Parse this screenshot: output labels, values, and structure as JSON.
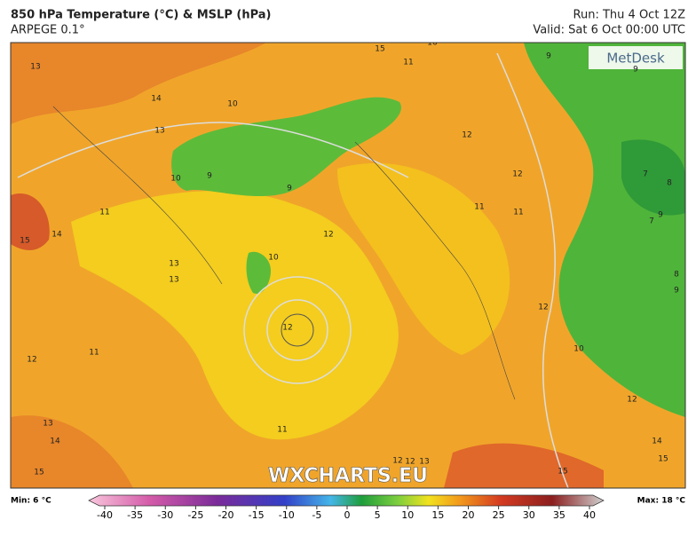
{
  "header": {
    "title": "850 hPa Temperature (°C) & MSLP (hPa)",
    "model": "ARPEGE 0.1°",
    "run": "Run: Thu 4 Oct 12Z",
    "valid": "Valid: Sat 6 Oct 00:00 UTC"
  },
  "logo": "MetDesk",
  "watermark": "WXCHARTS.EU",
  "map": {
    "contour_labels": [
      "13",
      "14",
      "13",
      "10",
      "10",
      "9",
      "9",
      "15",
      "16",
      "11",
      "12",
      "12",
      "11",
      "12",
      "13",
      "13",
      "10",
      "12",
      "11",
      "12",
      "11",
      "11",
      "12",
      "11",
      "9",
      "9",
      "7",
      "8",
      "9",
      "7",
      "8",
      "9",
      "12",
      "10",
      "14",
      "15",
      "13",
      "14",
      "15",
      "12",
      "13",
      "15",
      "14",
      "15",
      "12"
    ]
  },
  "colorbar": {
    "min_label": "Min: 6 °C",
    "max_label": "Max: 18 °C",
    "ticks": [
      -40,
      -35,
      -30,
      -25,
      -20,
      -15,
      -10,
      -5,
      0,
      5,
      10,
      15,
      20,
      25,
      30,
      35,
      40
    ],
    "range": [
      -40,
      40
    ]
  }
}
